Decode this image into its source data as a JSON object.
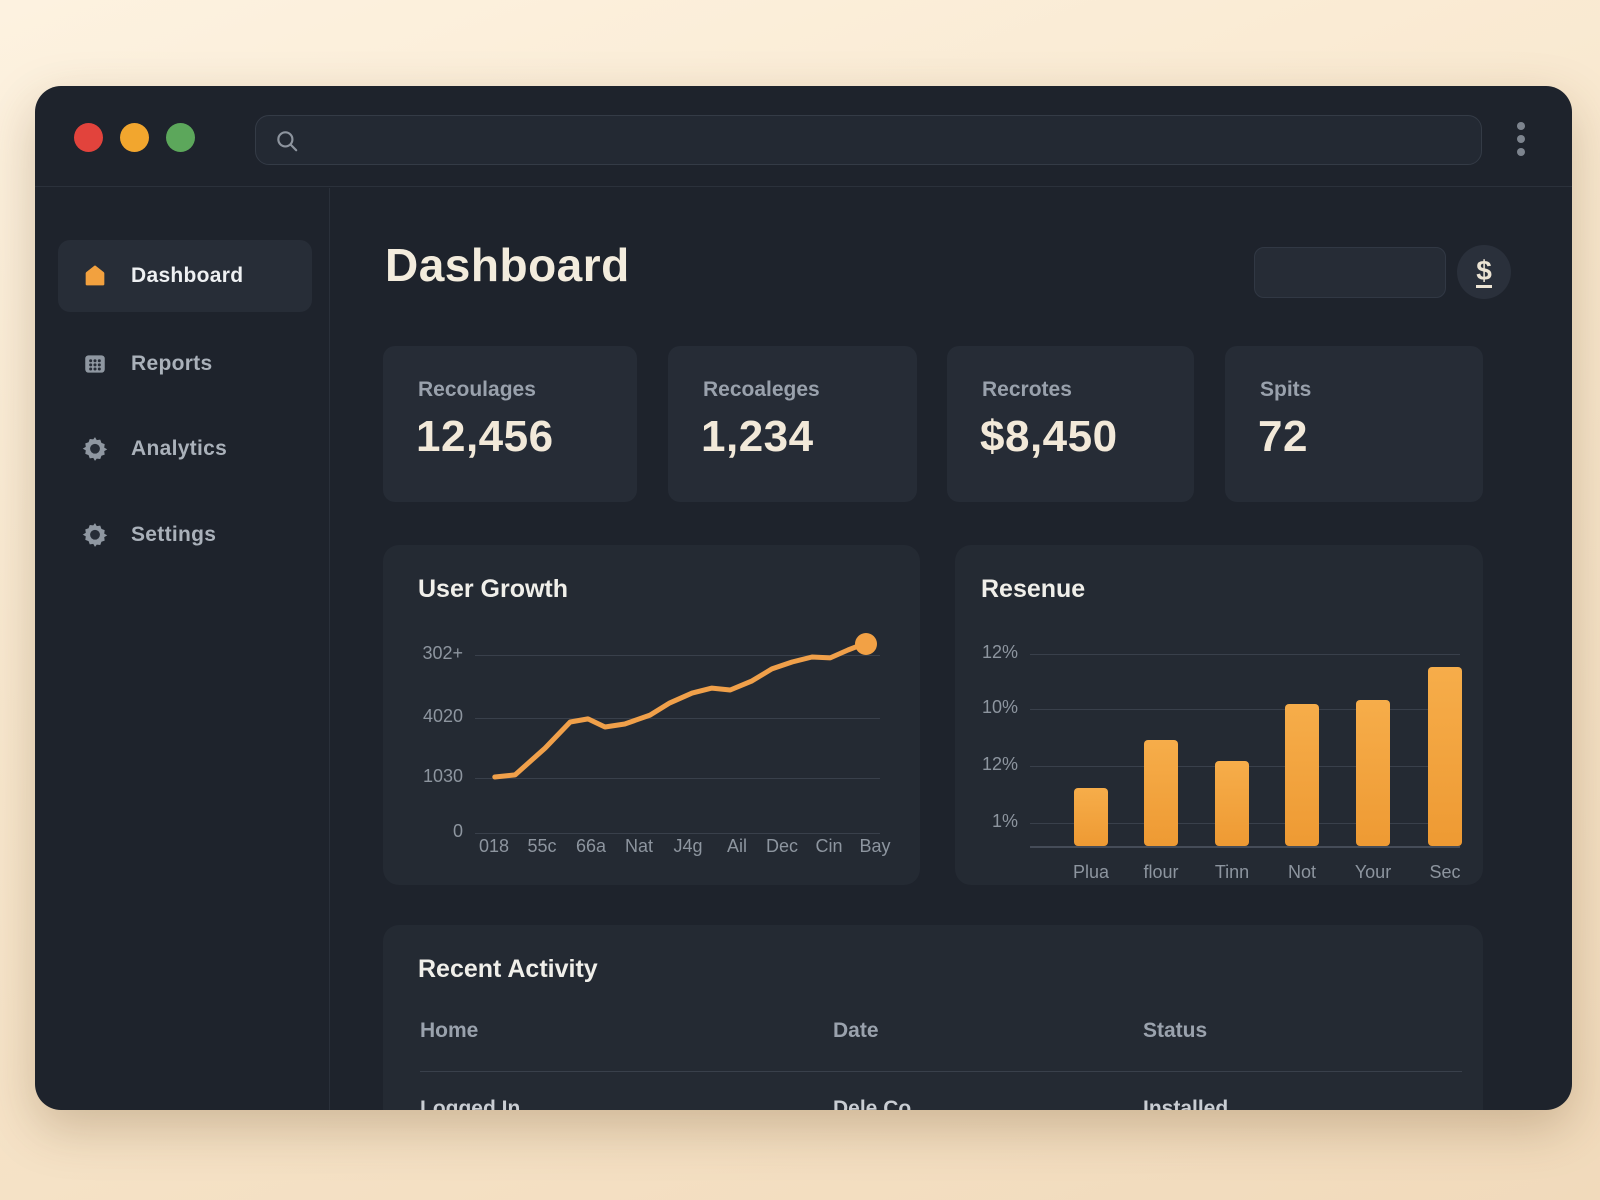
{
  "window": {
    "traffic_lights": {
      "close": "#e2433c",
      "minimize": "#f2a62e",
      "zoom": "#5ca75b"
    },
    "titlebar_search_value": "",
    "more_menu": "kebab"
  },
  "sidebar": {
    "items": [
      {
        "label": "Dashboard",
        "icon": "home-icon",
        "active": true
      },
      {
        "label": "Reports",
        "icon": "grid-icon",
        "active": false
      },
      {
        "label": "Analytics",
        "icon": "gear-icon",
        "active": false
      },
      {
        "label": "Settings",
        "icon": "gear-icon",
        "active": false
      }
    ]
  },
  "header": {
    "title": "Dashboard",
    "search_value": "",
    "avatar_label": "$"
  },
  "stat_cards": [
    {
      "label": "Recoulages",
      "value": "12,456"
    },
    {
      "label": "Recoaleges",
      "value": "1,234"
    },
    {
      "label": "Recrotes",
      "value": "$8,450"
    },
    {
      "label": "Spits",
      "value": "72"
    }
  ],
  "chart_data": [
    {
      "type": "line",
      "title": "User Growth",
      "ylabel": "",
      "xlabel": "",
      "y_ticks": [
        "302+",
        "4020",
        "1030",
        "0"
      ],
      "x_ticks": [
        "018",
        "55c",
        "66a",
        "Nat",
        "J4g",
        "Ail",
        "Dec",
        "Cin",
        "Bay"
      ],
      "line_color": "#f0a04a",
      "grid": true,
      "points_pct": [
        [
          4.9,
          71
        ],
        [
          9.9,
          69.9
        ],
        [
          17.3,
          56
        ],
        [
          23.5,
          42.5
        ],
        [
          27.9,
          40.9
        ],
        [
          32.1,
          45.1
        ],
        [
          37,
          43.5
        ],
        [
          43.2,
          38.9
        ],
        [
          48.1,
          32.6
        ],
        [
          53.6,
          27.5
        ],
        [
          58.5,
          24.9
        ],
        [
          63,
          25.9
        ],
        [
          68.4,
          21.2
        ],
        [
          73.3,
          15
        ],
        [
          78.3,
          11.4
        ],
        [
          83.2,
          8.8
        ],
        [
          87.7,
          9.3
        ],
        [
          92.1,
          5.2
        ],
        [
          96.5,
          1.6
        ]
      ],
      "end_dot_pct": [
        96.5,
        2.2
      ]
    },
    {
      "type": "bar",
      "title": "Resenue",
      "ylabel": "",
      "xlabel": "",
      "y_ticks": [
        "12%",
        "10%",
        "12%",
        "1%"
      ],
      "categories": [
        "Plua",
        "flour",
        "Tinn",
        "Not",
        "Your",
        "Sec"
      ],
      "values": [
        3.6,
        6.6,
        5.3,
        8.9,
        9.1,
        11.2
      ],
      "ymax": 12,
      "bar_color": "#f2a13f",
      "grid": true
    }
  ],
  "activity": {
    "title": "Recent Activity",
    "columns": [
      "Home",
      "Date",
      "Status"
    ],
    "partial_row": [
      "Logged In",
      "Dele Co",
      "Installed"
    ]
  },
  "colors": {
    "accent_orange": "#f2a13f",
    "window_bg": "#1e232c",
    "card_bg": "#262c36",
    "cream_bg": "#f7e6cd",
    "text_cream": "#f2e9d9",
    "text_gray": "#99a1ac"
  }
}
